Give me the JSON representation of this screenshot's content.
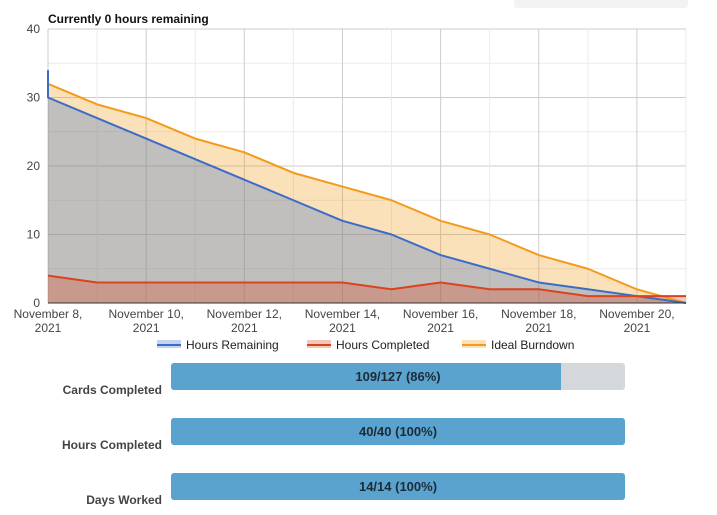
{
  "colors": {
    "hours_remaining": "#3b6cc6",
    "hours_completed": "#d9441f",
    "ideal_burndown": "#f39b1a",
    "progress_fill": "#5aa3cf",
    "progress_track": "#d5d8da"
  },
  "chart_data": {
    "type": "area",
    "title": "Currently 0 hours remaining",
    "x": [
      "2021-11-08",
      "2021-11-09",
      "2021-11-10",
      "2021-11-11",
      "2021-11-12",
      "2021-11-13",
      "2021-11-14",
      "2021-11-15",
      "2021-11-16",
      "2021-11-17",
      "2021-11-18",
      "2021-11-19",
      "2021-11-20",
      "2021-11-21"
    ],
    "xticks": [
      "November 8, 2021",
      "November 10, 2021",
      "November 12, 2021",
      "November 14, 2021",
      "November 16, 2021",
      "November 18, 2021",
      "November 20, 2021"
    ],
    "ylim": [
      0,
      40
    ],
    "yticks": [
      0,
      10,
      20,
      30,
      40
    ],
    "grid": true,
    "legend_position": "bottom",
    "series": [
      {
        "name": "Hours Remaining",
        "values": [
          30,
          27,
          24,
          21,
          18,
          15,
          12,
          10,
          7,
          5,
          3,
          2,
          1,
          0
        ],
        "start_value": 34
      },
      {
        "name": "Hours Completed",
        "values": [
          4,
          3,
          3,
          3,
          3,
          3,
          3,
          2,
          3,
          2,
          2,
          1,
          1,
          1
        ]
      },
      {
        "name": "Ideal Burndown",
        "values": [
          32,
          29,
          27,
          24,
          22,
          19,
          17,
          15,
          12,
          10,
          7,
          5,
          2,
          0
        ]
      }
    ]
  },
  "progress": [
    {
      "label": "Cards Completed",
      "text": "109/127 (86%)",
      "fraction": 0.86
    },
    {
      "label": "Hours Completed",
      "text": "40/40 (100%)",
      "fraction": 1.0
    },
    {
      "label": "Days Worked",
      "text": "14/14 (100%)",
      "fraction": 1.0
    }
  ]
}
